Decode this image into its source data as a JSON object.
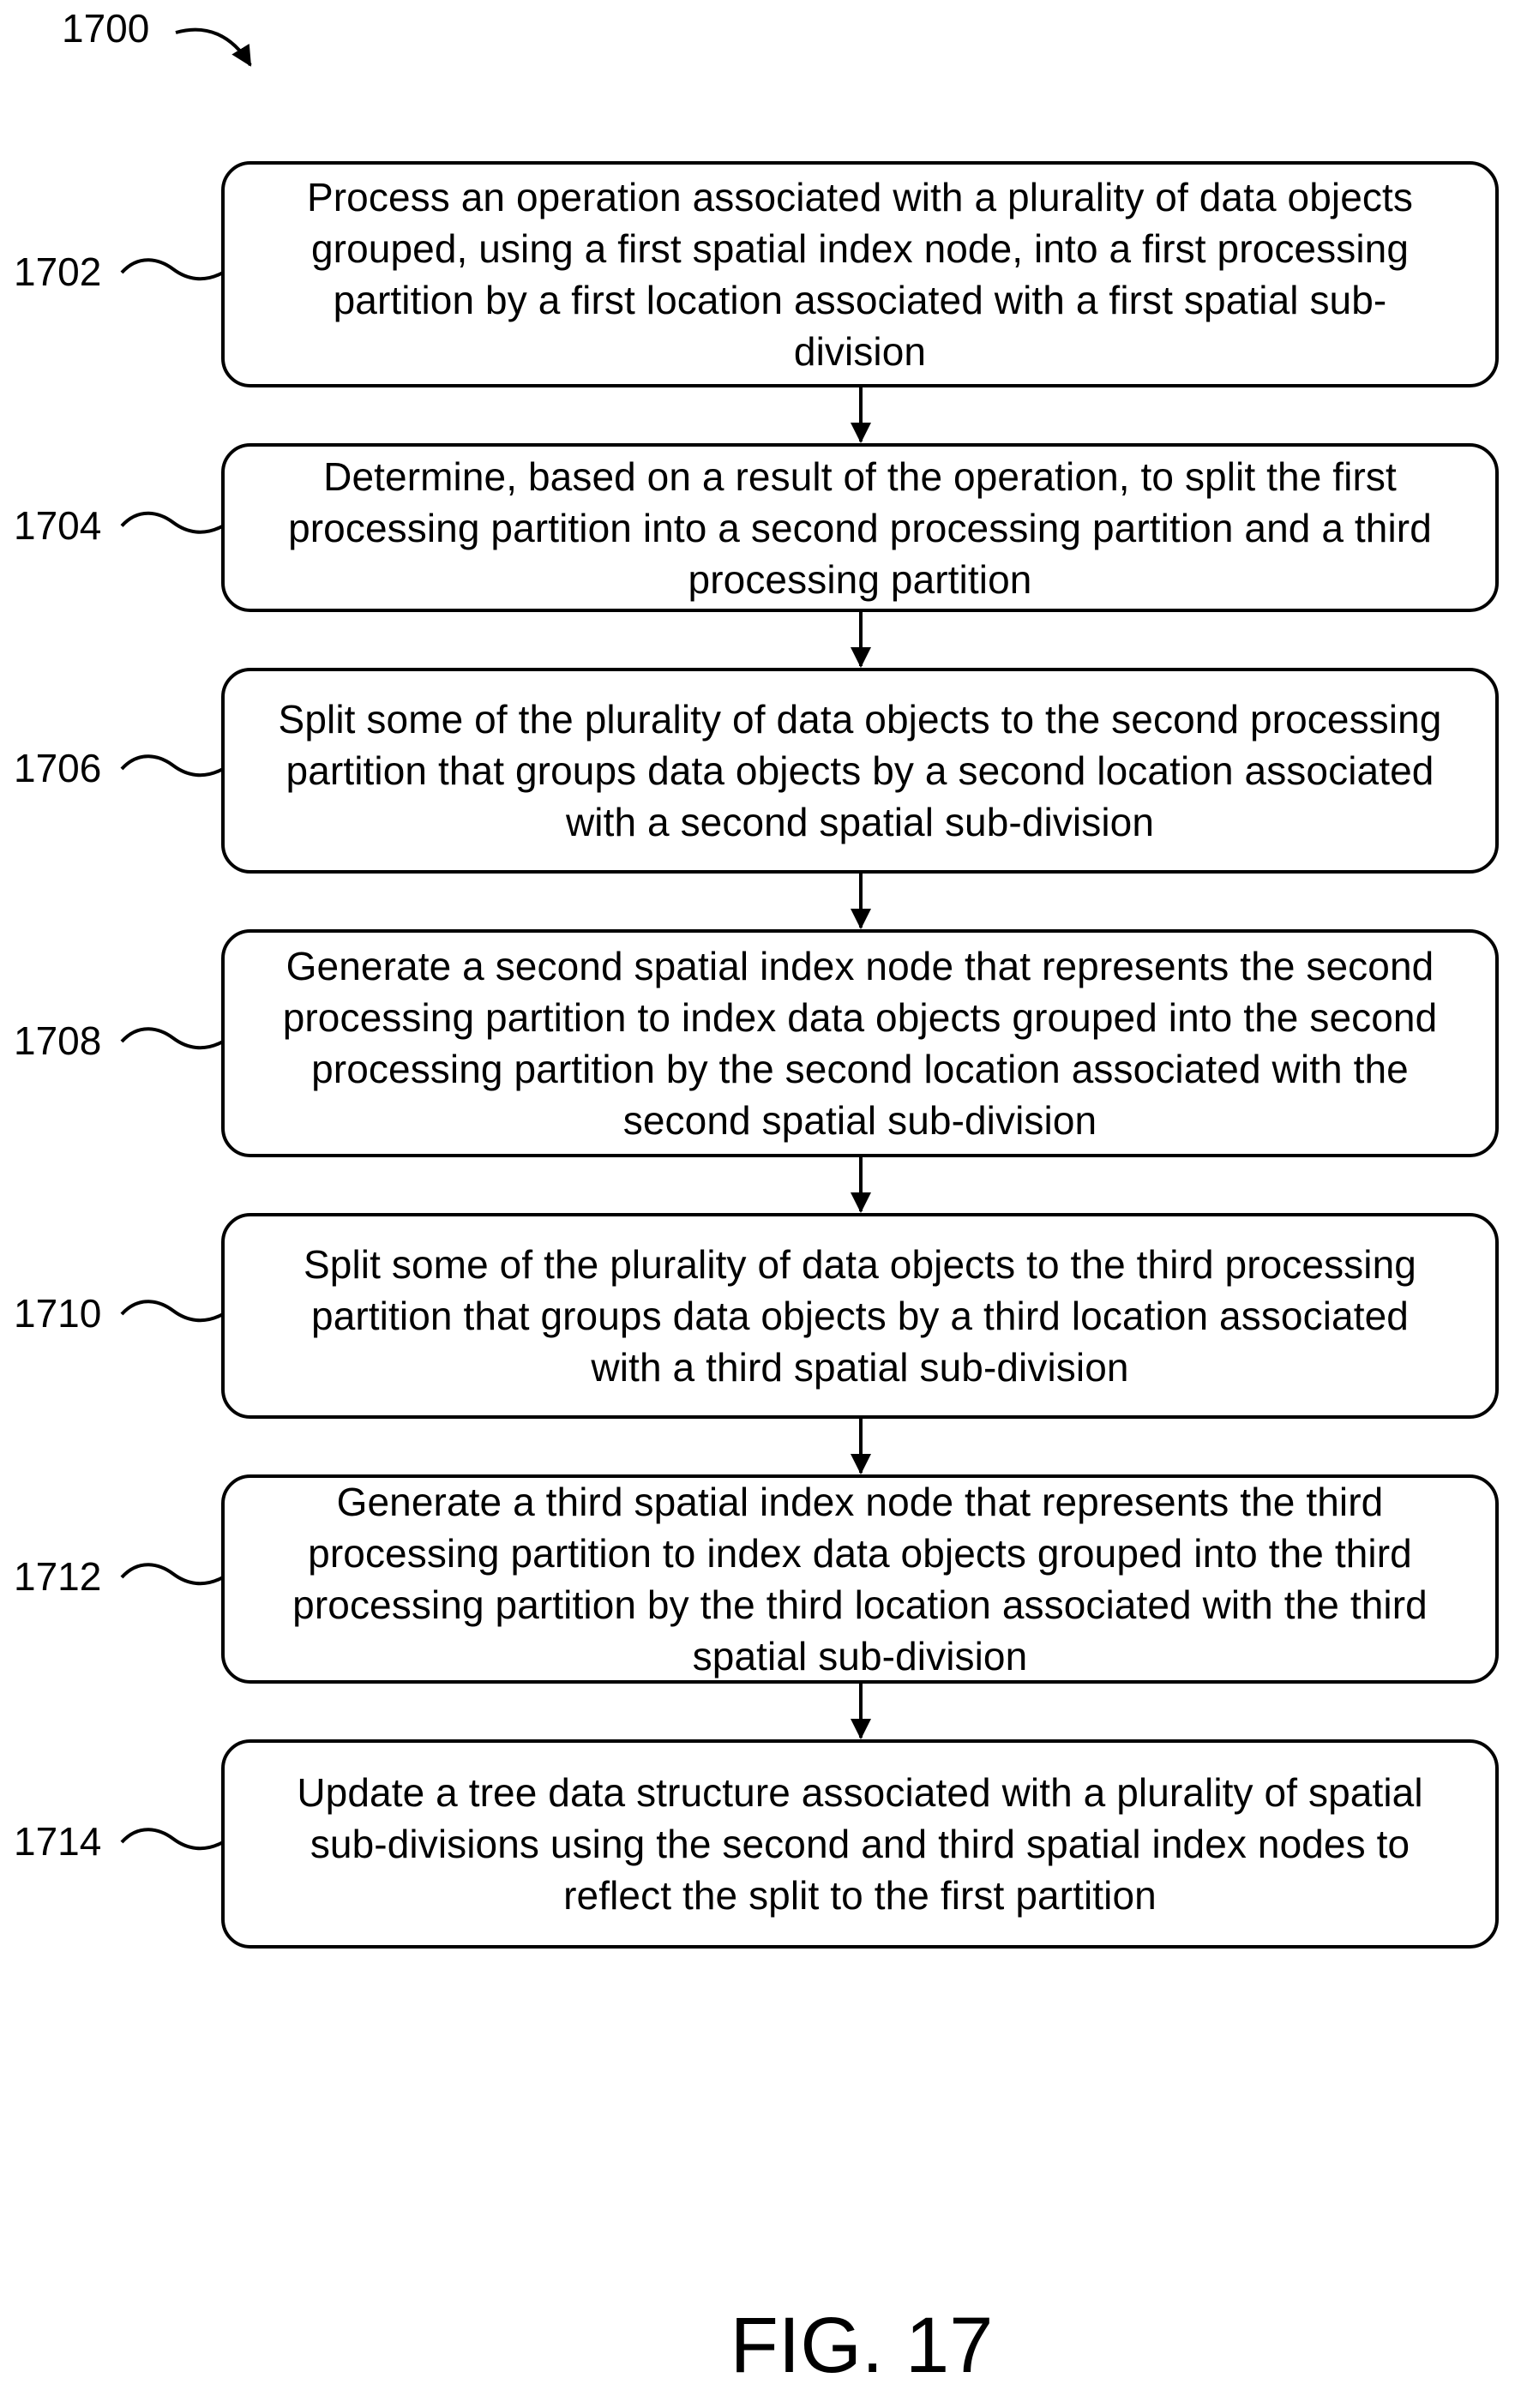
{
  "figure_ref": "1700",
  "caption": "FIG. 17",
  "steps": [
    {
      "id": "1702",
      "lines": [
        "Process an operation associated with a plurality of data objects",
        "grouped, using a first spatial index node, into a first processing",
        "partition by a first location associated with a first spatial sub-",
        "division"
      ]
    },
    {
      "id": "1704",
      "lines": [
        "Determine, based on a result of the operation, to split the first",
        "processing partition into a second processing partition and a third",
        "processing partition"
      ]
    },
    {
      "id": "1706",
      "lines": [
        "Split some of the plurality of data objects to the second processing",
        "partition that groups data objects by a second location associated",
        "with a second spatial sub-division"
      ]
    },
    {
      "id": "1708",
      "lines": [
        "Generate a second spatial index node that represents the second",
        "processing partition to index data objects grouped into the second",
        "processing partition by the second location associated with the",
        "second spatial sub-division"
      ]
    },
    {
      "id": "1710",
      "lines": [
        "Split some of the plurality of data objects to the third processing",
        "partition that groups data objects by a third location associated",
        "with a third spatial sub-division"
      ]
    },
    {
      "id": "1712",
      "lines": [
        "Generate a third spatial index node that represents the third",
        "processing partition to index data objects grouped into the third",
        "processing partition by the third location associated with the third",
        "spatial sub-division"
      ]
    },
    {
      "id": "1714",
      "lines": [
        "Update a tree data structure associated with a plurality of spatial",
        "sub-divisions using the second and third spatial index nodes to",
        "reflect the split to the first partition"
      ]
    }
  ]
}
